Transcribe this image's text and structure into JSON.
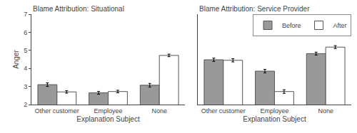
{
  "chart_data": [
    {
      "type": "bar",
      "title": "Blame Attribution: Situational",
      "xlabel": "Explanation Subject",
      "ylabel": "Anger",
      "categories": [
        "Other customer",
        "Employee",
        "None"
      ],
      "series": [
        {
          "name": "Before",
          "color": "#999999",
          "values": [
            3.1,
            2.65,
            3.07
          ],
          "error": [
            0.1,
            0.08,
            0.1
          ]
        },
        {
          "name": "After",
          "color": "#ffffff",
          "values": [
            2.7,
            2.72,
            4.72
          ],
          "error": [
            0.07,
            0.07,
            0.07
          ]
        }
      ],
      "ylim": [
        2,
        7
      ],
      "yticks": [
        2,
        3,
        4,
        5,
        6,
        7
      ],
      "grid": false
    },
    {
      "type": "bar",
      "title": "Blame Attribution: Service Provider",
      "xlabel": "Explanation Subject",
      "categories": [
        "Other customer",
        "Employee",
        "None"
      ],
      "series": [
        {
          "name": "Before",
          "color": "#999999",
          "values": [
            4.48,
            3.85,
            4.82
          ],
          "error": [
            0.09,
            0.1,
            0.08
          ]
        },
        {
          "name": "After",
          "color": "#ffffff",
          "values": [
            4.45,
            2.72,
            5.18
          ],
          "error": [
            0.09,
            0.1,
            0.08
          ]
        }
      ],
      "ylim": [
        2,
        7
      ],
      "yticks": [
        2,
        3,
        4,
        5,
        6,
        7
      ],
      "grid": false,
      "tick_labels": "x",
      "legend": "upper right"
    }
  ]
}
